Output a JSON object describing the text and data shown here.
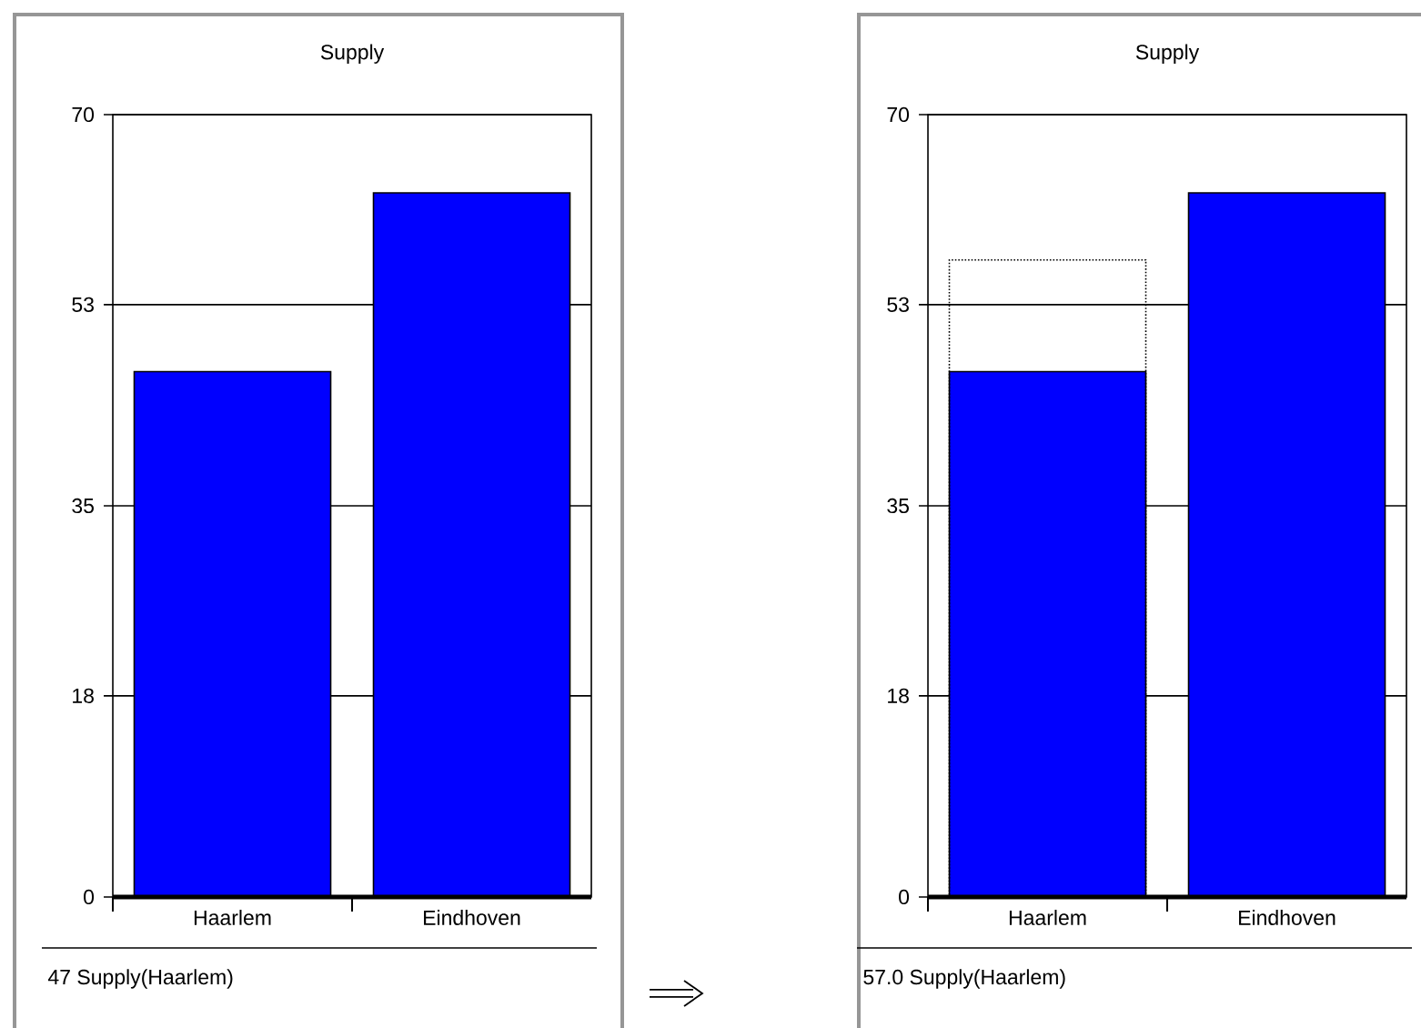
{
  "chart_data": [
    {
      "type": "bar",
      "title": "Supply",
      "categories": [
        "Haarlem",
        "Eindhoven"
      ],
      "ylim": [
        0,
        70
      ],
      "yticks": [
        0,
        18,
        35,
        53,
        70
      ],
      "grid": "y",
      "series": [
        {
          "color": "#0000ff",
          "values": [
            47,
            63
          ]
        }
      ],
      "annotations": [
        "47 Supply(Haarlem)"
      ]
    },
    {
      "type": "bar",
      "title": "Supply",
      "categories": [
        "Haarlem",
        "Eindhoven"
      ],
      "ylim": [
        0,
        70
      ],
      "yticks": [
        0,
        18,
        35,
        53,
        70
      ],
      "grid": "y",
      "series": [
        {
          "color": "#0000ff",
          "values": [
            47,
            63
          ]
        },
        {
          "color": "#000000",
          "line_style": "dotted",
          "values": [
            57,
            null
          ]
        }
      ],
      "annotations": [
        "57.0 Supply(Haarlem)"
      ]
    }
  ]
}
